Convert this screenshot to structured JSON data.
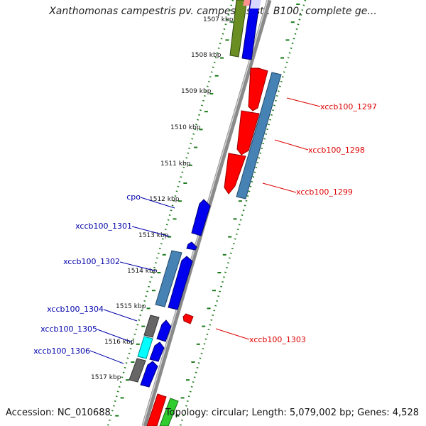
{
  "title": "Xanthomonas campestris pv. campestris str. B100, complete ge...",
  "footer": {
    "accession": "Accession: NC_010688",
    "topology": "Topology: circular; Length: 5,079,002 bp; Genes: 4,528"
  },
  "colors": {
    "red": "#ff0000",
    "blue": "#0000ee",
    "steel": "#4682b4",
    "grey": "#666666",
    "cyan": "#00ffff",
    "olive": "#6b8e23",
    "green": "#2ecc2e",
    "pink": "#ff9090",
    "label_red": "#dd0000",
    "label_blue": "#0000aa",
    "tick_green": "#1a7a1a",
    "backbone": "#8a8a8a"
  },
  "ruler": {
    "ticks": [
      "1507 kbp",
      "1508 kbp",
      "1509 kbp",
      "1510 kbp",
      "1511 kbp",
      "1512 kbp",
      "1513 kbp",
      "1514 kbp",
      "1515 kbp",
      "1516 kbp",
      "1517 kbp"
    ]
  },
  "genes": {
    "right": [
      "xccb100_1297",
      "xccb100_1298",
      "xccb100_1299",
      "xccb100_1303"
    ],
    "left": [
      "cpo",
      "xccb100_1301",
      "xccb100_1302",
      "xccb100_1304",
      "xccb100_1305",
      "xccb100_1306"
    ]
  }
}
